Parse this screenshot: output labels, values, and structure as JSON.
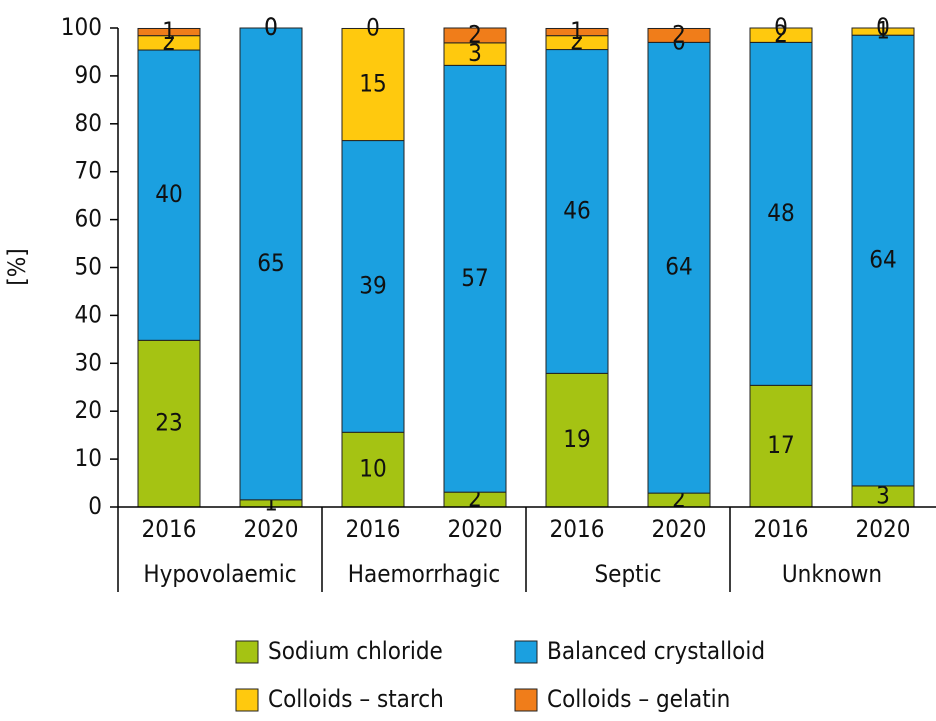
{
  "chart_data": {
    "type": "stacked_bar",
    "y_label": "[%]",
    "categories": [
      "2016",
      "2020",
      "2016",
      "2020",
      "2016",
      "2020",
      "2016",
      "2020"
    ],
    "groups": [
      "Hypovolaemic",
      "Haemorrhagic",
      "Septic",
      "Unknown"
    ],
    "series": [
      {
        "name": "Sodium chloride",
        "color": "#a5c313",
        "values": [
          34.8,
          1.5,
          15.6,
          3.1,
          27.9,
          2.9,
          25.4,
          4.4
        ],
        "counts": [
          23,
          1,
          10,
          2,
          19,
          2,
          17,
          3
        ]
      },
      {
        "name": "Balanced crystalloid",
        "color": "#1ba0e0",
        "values": [
          60.6,
          98.5,
          60.9,
          89.1,
          67.6,
          94.1,
          71.6,
          94.1
        ],
        "counts": [
          40,
          65,
          39,
          57,
          46,
          64,
          48,
          64
        ]
      },
      {
        "name": "Colloids – starch",
        "color": "#ffc90e",
        "values": [
          3.0,
          0,
          23.4,
          4.7,
          2.9,
          0,
          3.0,
          1.5
        ],
        "counts": [
          2,
          0,
          15,
          3,
          2,
          0,
          2,
          1
        ]
      },
      {
        "name": "Colloids – gelatin",
        "color": "#f07d1a",
        "values": [
          1.5,
          0,
          0,
          3.1,
          1.5,
          2.9,
          0,
          0
        ],
        "counts": [
          1,
          0,
          0,
          2,
          1,
          2,
          0,
          0
        ]
      }
    ],
    "ylim": [
      0,
      100
    ],
    "yticks": [
      0,
      10,
      20,
      30,
      40,
      50,
      60,
      70,
      80,
      90,
      100
    ]
  }
}
